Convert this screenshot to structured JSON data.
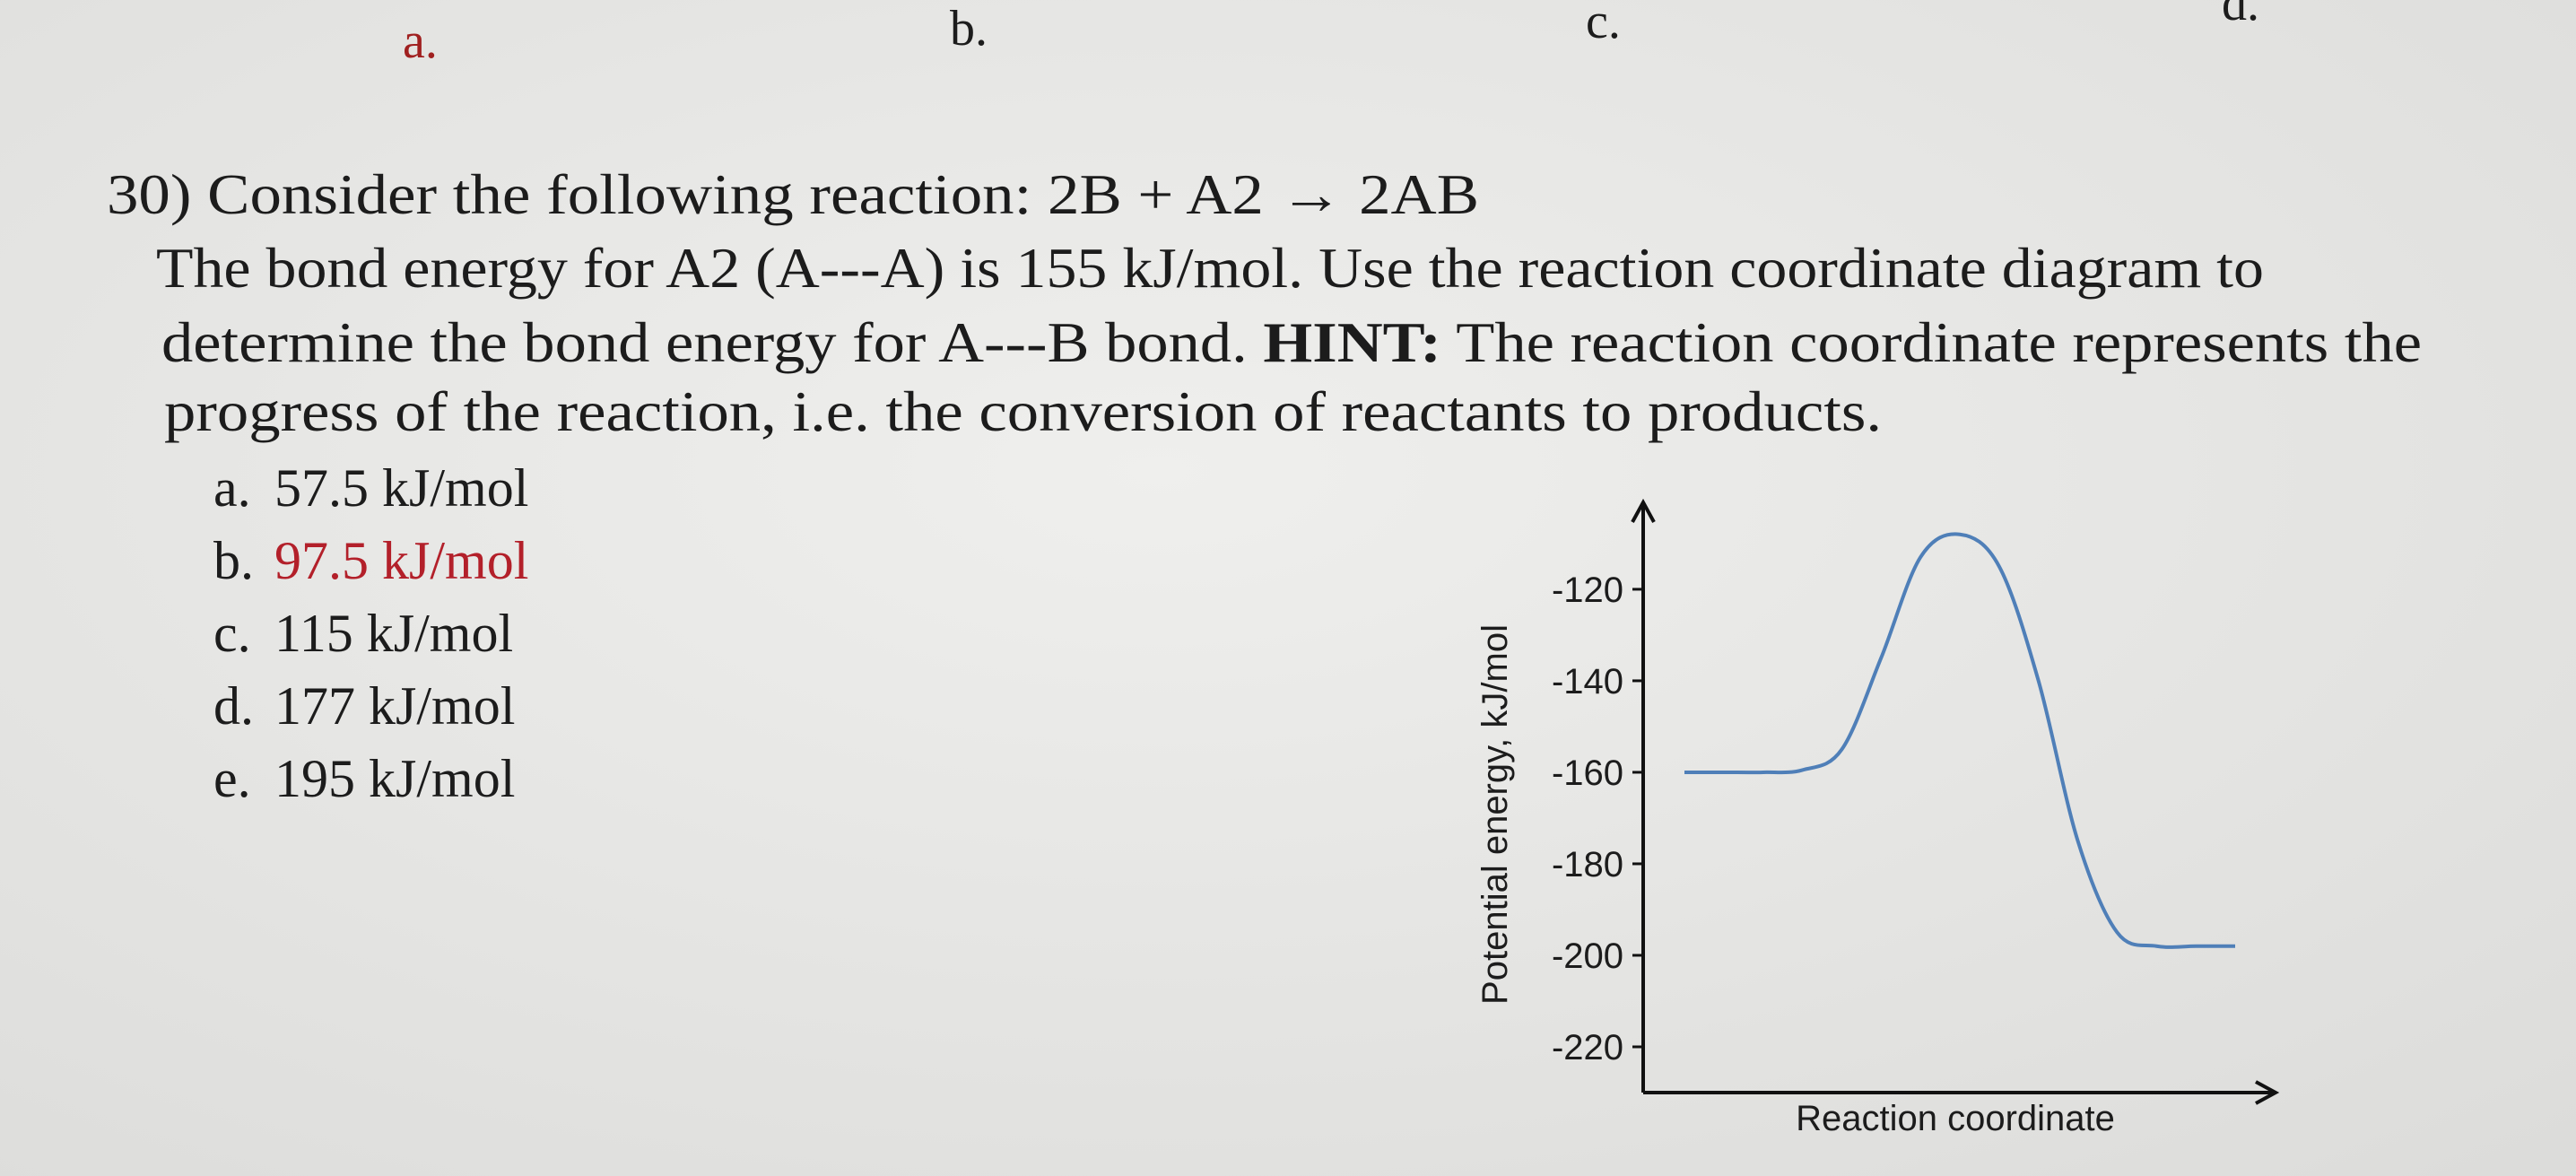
{
  "header": {
    "letters": [
      "a.",
      "b.",
      "c.",
      "d."
    ]
  },
  "question": {
    "lines": [
      "30) Consider the following reaction: 2B + A2 → 2AB",
      "The bond energy for A2 (A---A) is 155 kJ/mol. Use the reaction coordinate diagram to",
      [
        "determine the bond energy for A---B bond. ",
        "HINT:",
        " The reaction coordinate represents the"
      ],
      "progress of the reaction, i.e. the conversion of reactants to products."
    ]
  },
  "options": [
    {
      "letter": "a.",
      "text": "57.5 kJ/mol"
    },
    {
      "letter": "b.",
      "text": "97.5 kJ/mol"
    },
    {
      "letter": "c.",
      "text": "115 kJ/mol"
    },
    {
      "letter": "d.",
      "text": "177 kJ/mol"
    },
    {
      "letter": "e.",
      "text": "195 kJ/mol"
    }
  ],
  "chart_data": {
    "type": "line",
    "y_label": "Potential energy, kJ/mol",
    "x_label": "Reaction coordinate",
    "values": [
      -160,
      -160,
      -160,
      -159.5,
      -155,
      -135,
      -113,
      -108,
      -115,
      -140,
      -175,
      -195,
      -198,
      -198,
      -198
    ],
    "color": "#4f7fb8",
    "ylim": [
      -230,
      -101
    ],
    "yticks": [
      -120,
      -140,
      -160,
      -180,
      -200,
      -220
    ]
  }
}
